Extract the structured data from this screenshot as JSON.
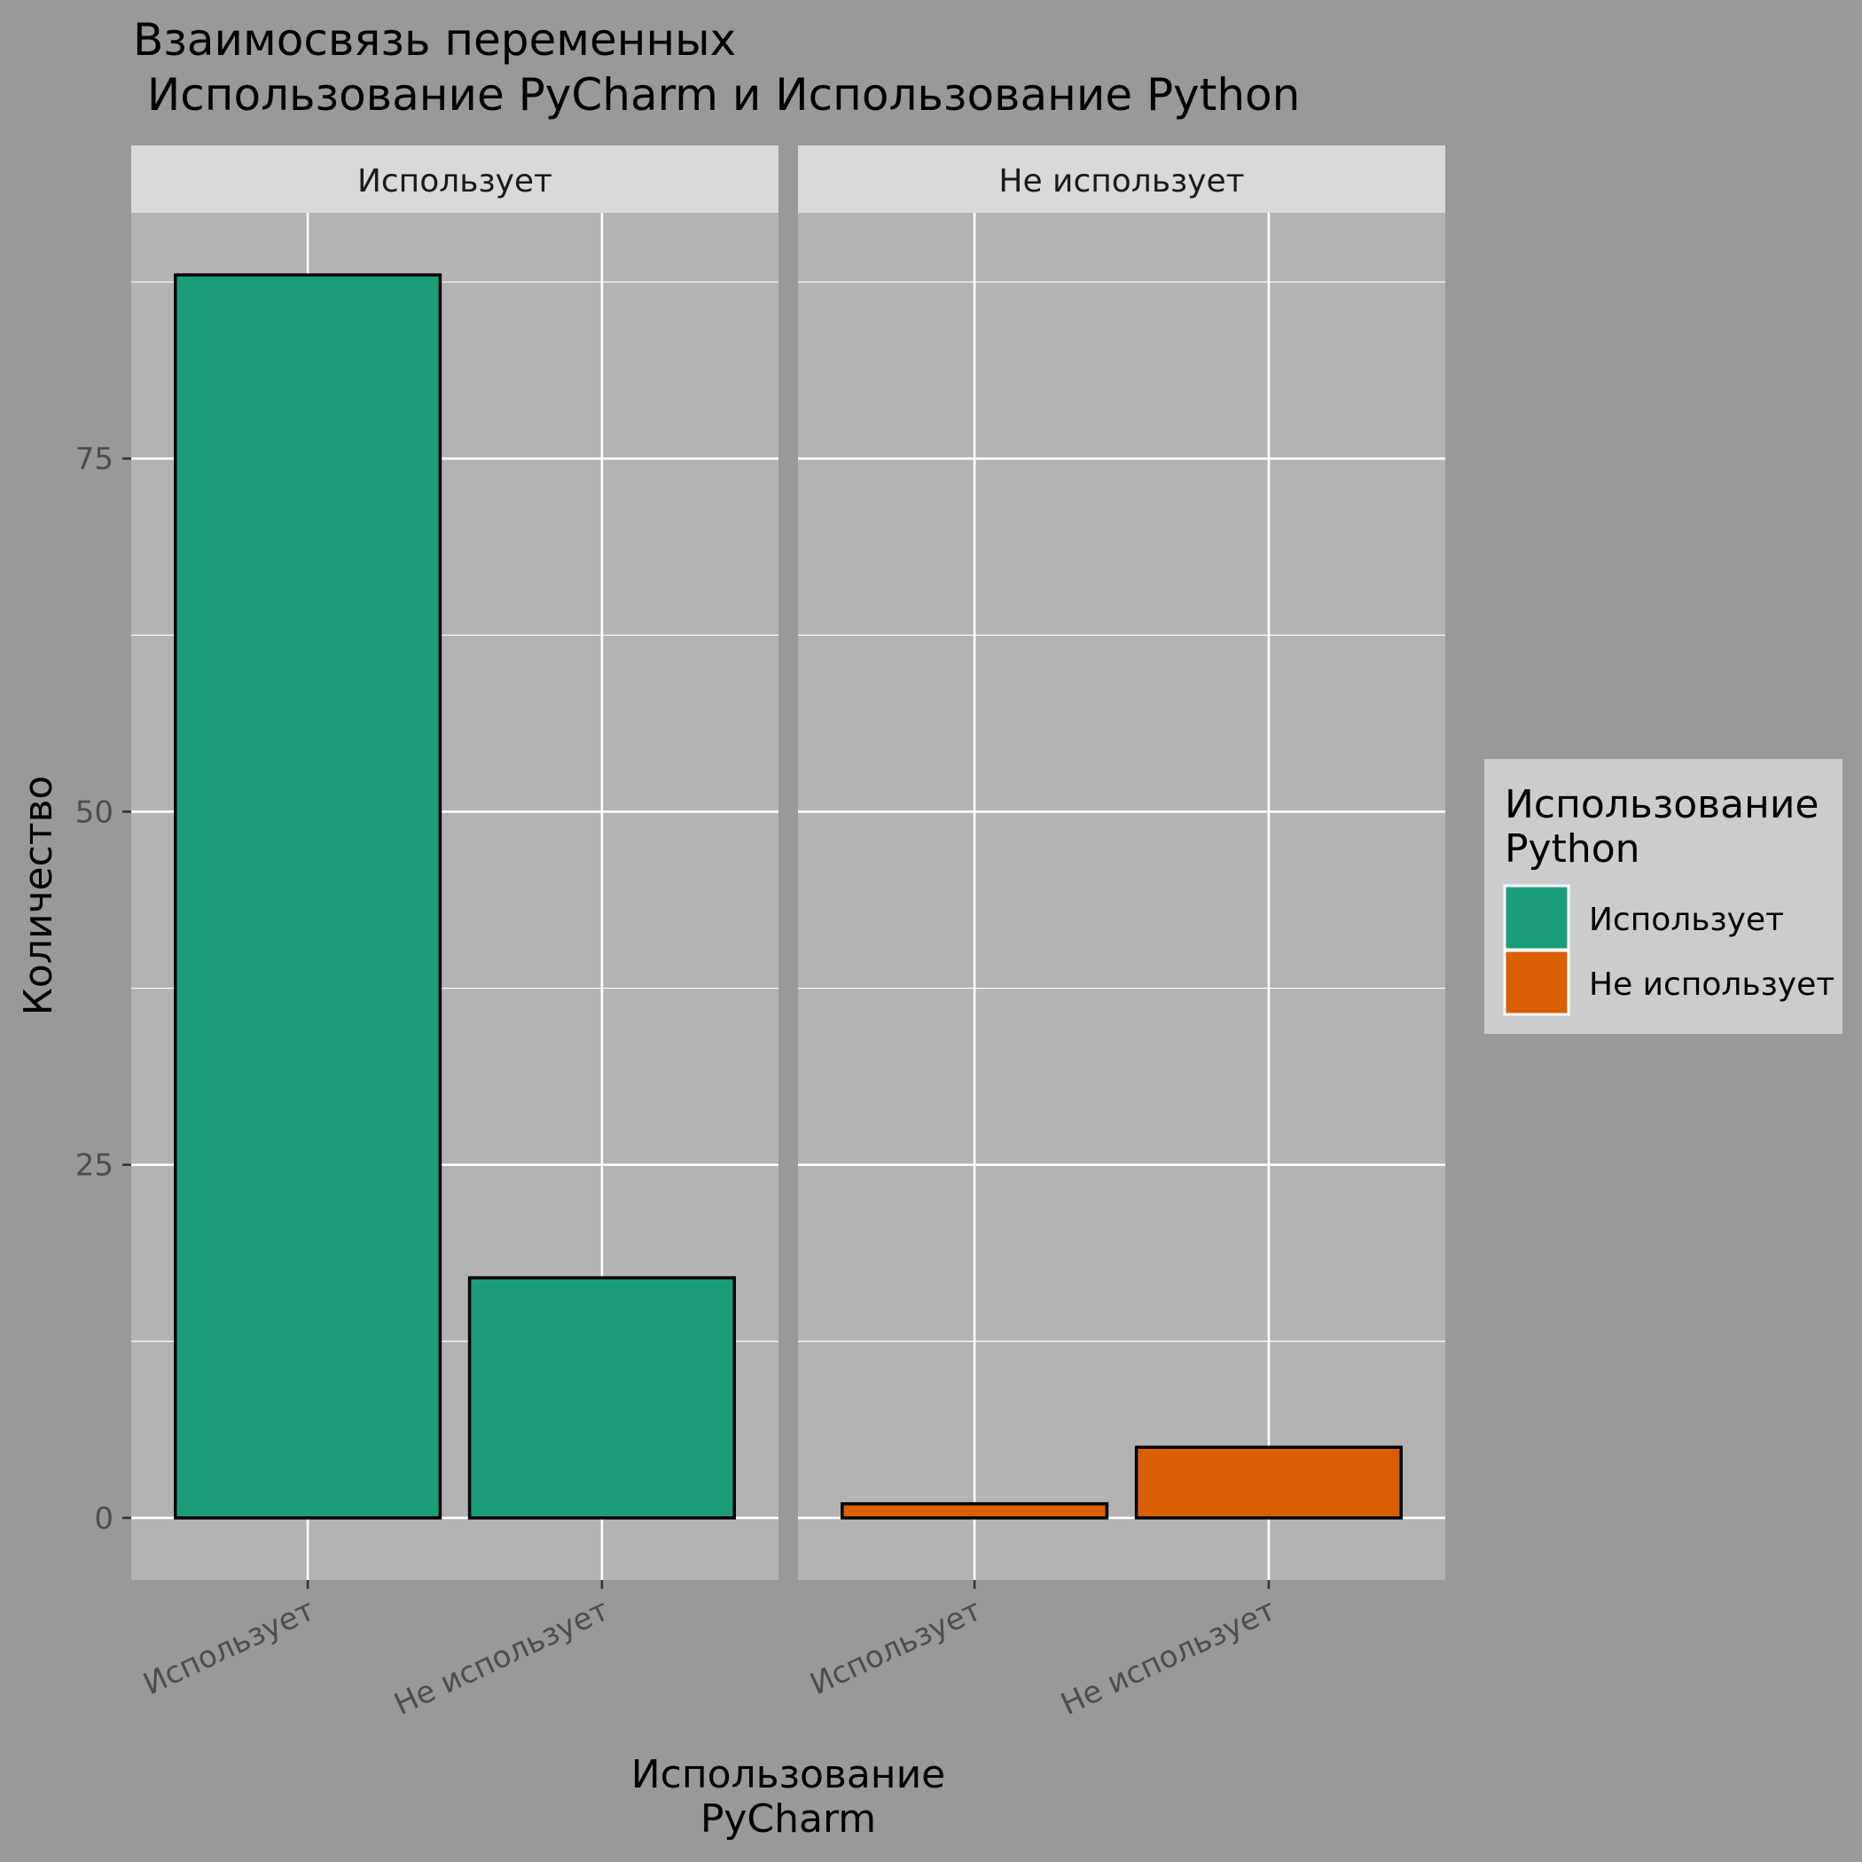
{
  "title_line1": "Взаимосвязь переменных",
  "title_line2": " Использование PyCharm и Использование Python",
  "colors": {
    "background": "#999999",
    "panel": "#b3b3b3",
    "strip": "#d9d9d9",
    "legend_bg": "#cccccc",
    "gridline": "#ffffff",
    "uses": "#1b9e77",
    "not_uses": "#d95f02"
  },
  "chart_data": {
    "type": "bar",
    "facet_variable": "Использование Python",
    "facets": [
      "Использует",
      "Не использует"
    ],
    "categories": [
      "Использует",
      "Не использует"
    ],
    "series": [
      {
        "name": "Использует",
        "values": [
          88,
          17
        ]
      },
      {
        "name": "Не использует",
        "values": [
          1,
          5
        ]
      }
    ],
    "xlabel_line1": "Использование",
    "xlabel_line2": "PyCharm",
    "ylabel": "Количество",
    "yticks": [
      0,
      25,
      50,
      75
    ],
    "ylim": [
      -4.4,
      92.4
    ],
    "grid": true,
    "legend": {
      "title_line1": "Использование",
      "title_line2": "Python",
      "entries": [
        "Использует",
        "Не использует"
      ],
      "placement": "right"
    }
  }
}
